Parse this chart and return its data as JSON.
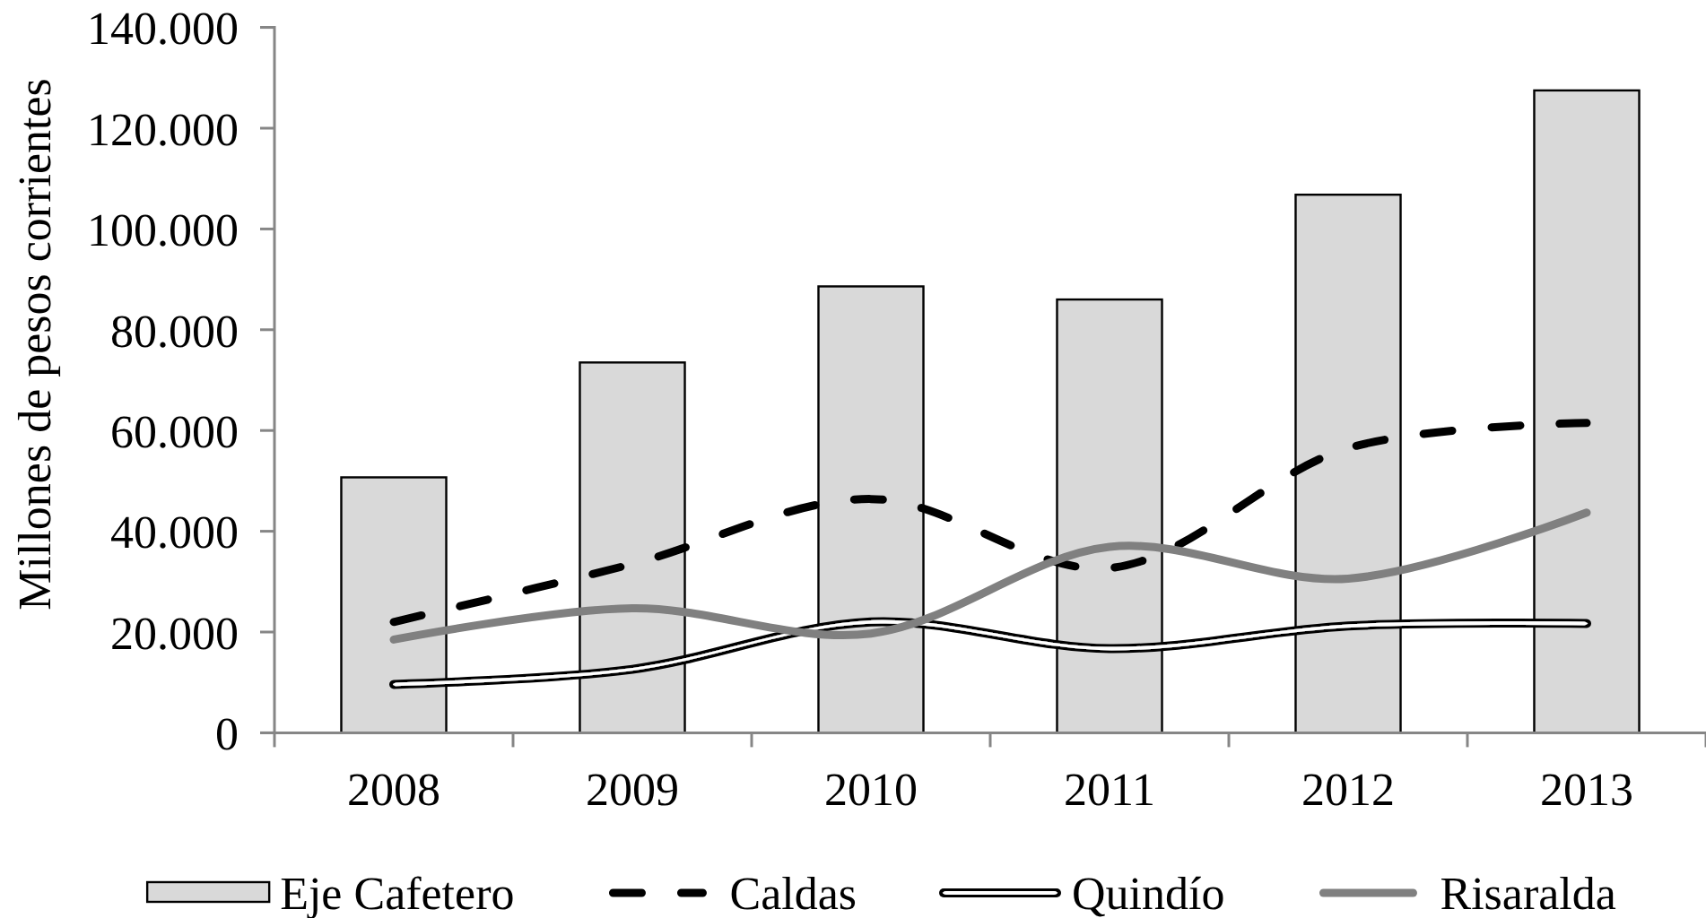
{
  "chart_data": {
    "type": "bar",
    "ylabel": "Millones de pesos corrientes",
    "categories": [
      "2008",
      "2009",
      "2010",
      "2011",
      "2012",
      "2013"
    ],
    "series": [
      {
        "name": "Eje Cafetero",
        "color": "#d9d9d9",
        "values": [
          50700,
          73500,
          88600,
          86000,
          106800,
          127500
        ]
      },
      {
        "name": "Caldas",
        "type": "line",
        "color": "#000000",
        "line_style": "dashed",
        "values": [
          22000,
          33500,
          46400,
          32700,
          56500,
          61500
        ]
      },
      {
        "name": "Quindío",
        "type": "line",
        "color": "#000000",
        "line_style": "solid",
        "values": [
          9600,
          12600,
          22000,
          16700,
          21200,
          21700
        ]
      },
      {
        "name": "Risaralda",
        "type": "line",
        "color": "#808080",
        "line_style": "solid",
        "values": [
          18500,
          24700,
          19700,
          36900,
          30600,
          43700
        ]
      }
    ],
    "ylim": [
      0,
      140000
    ],
    "yticks": [
      {
        "value": 0,
        "label": "0"
      },
      {
        "value": 20000,
        "label": "20.000"
      },
      {
        "value": 40000,
        "label": "40.000"
      },
      {
        "value": 60000,
        "label": "60.000"
      },
      {
        "value": 80000,
        "label": "80.000"
      },
      {
        "value": 100000,
        "label": "100.000"
      },
      {
        "value": 120000,
        "label": "120.000"
      },
      {
        "value": 140000,
        "label": "140.000"
      }
    ],
    "grid": false,
    "legend": "bottom",
    "marker": "none"
  }
}
